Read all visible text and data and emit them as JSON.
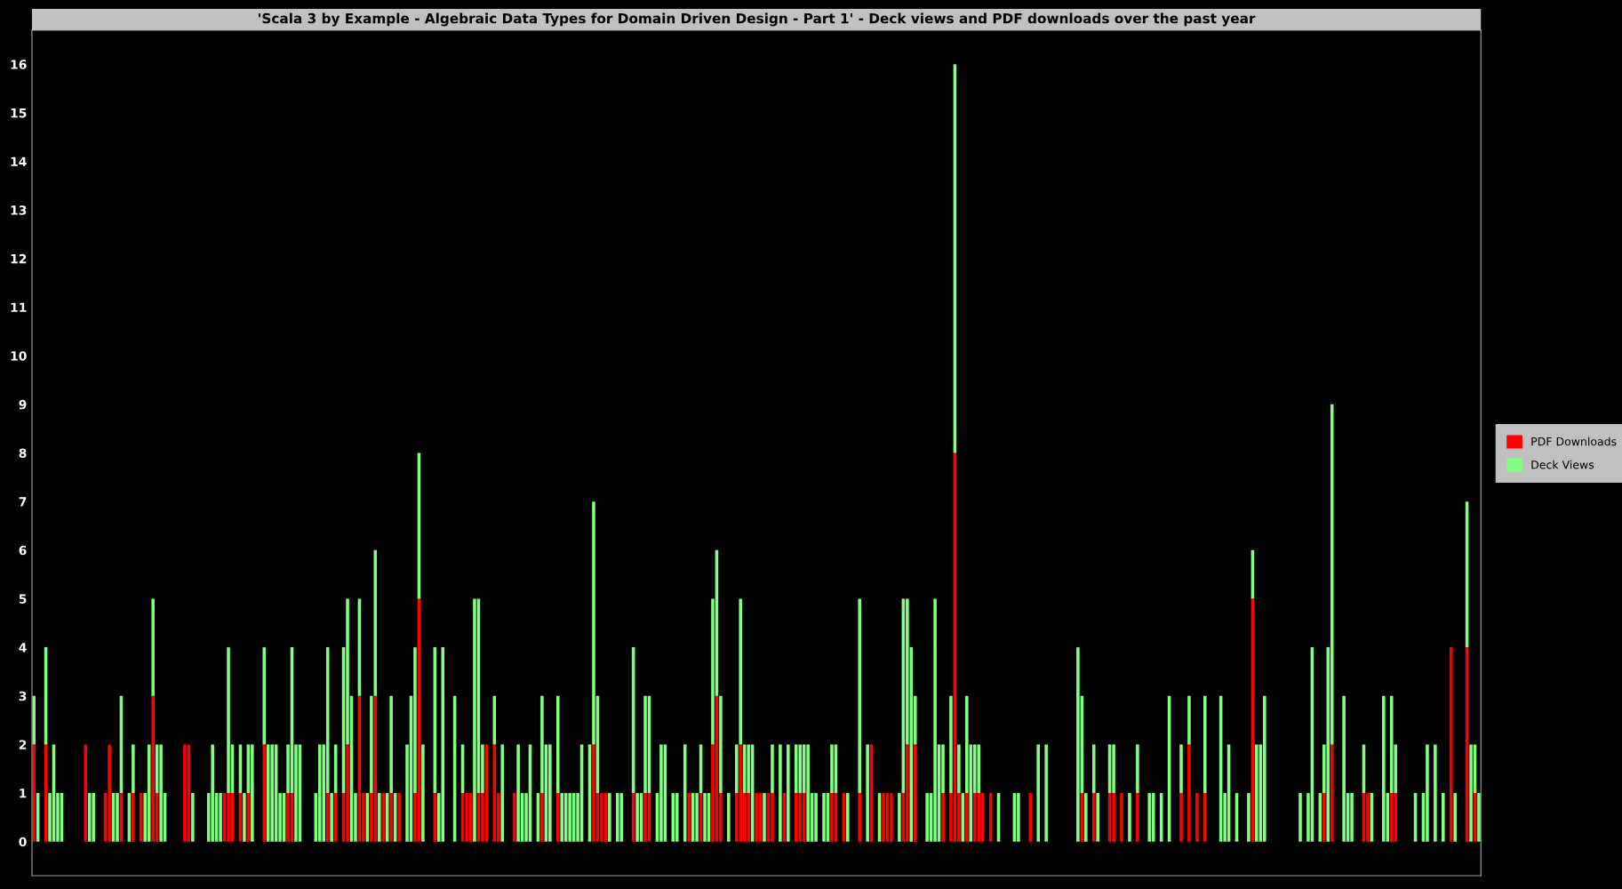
{
  "chart_data": {
    "type": "bar",
    "stacked": true,
    "title": "'Scala 3 by Example - Algebraic Data Types for Domain Driven Design - Part 1' - Deck views and PDF downloads over the past year",
    "categories": [
      null,
      null,
      null,
      null,
      null,
      null,
      null,
      null,
      null,
      null,
      null,
      null,
      null,
      null,
      null,
      null,
      null,
      null,
      null,
      null,
      null,
      null,
      null,
      null,
      null,
      null,
      null,
      null,
      null,
      null,
      null,
      null,
      null,
      null,
      null,
      null,
      null,
      null,
      null,
      null,
      null,
      null,
      null,
      null,
      null,
      null,
      null,
      null,
      null,
      null,
      null,
      null,
      null,
      null,
      null,
      null,
      null,
      null,
      null,
      null,
      null,
      null,
      null,
      null,
      null,
      null,
      null,
      null,
      null,
      null,
      null,
      null,
      null,
      null,
      null,
      null,
      null,
      null,
      null,
      null,
      null,
      null,
      null,
      null,
      null,
      null,
      null,
      null,
      null,
      null,
      null,
      null,
      null,
      null,
      null,
      null,
      null,
      null,
      null,
      null,
      null,
      null,
      null,
      null,
      null,
      null,
      null,
      null,
      null,
      null,
      null,
      null,
      null,
      null,
      null,
      null,
      null,
      null,
      null,
      null,
      null,
      null,
      null,
      null,
      null,
      null,
      null,
      null,
      null,
      null,
      null,
      null,
      null,
      null,
      null,
      null,
      null,
      null,
      null,
      null,
      null,
      null,
      null,
      null,
      null,
      null,
      null,
      null,
      null,
      null,
      null,
      null,
      null,
      null,
      null,
      null,
      null,
      null,
      null,
      null,
      null,
      null,
      null,
      null,
      null,
      null,
      null,
      null,
      null,
      null,
      null,
      null,
      null,
      null,
      null,
      null,
      null,
      null,
      null,
      null,
      null,
      null,
      null,
      null,
      null,
      null,
      null,
      null,
      null,
      null,
      null,
      null,
      null,
      null,
      null,
      null,
      null,
      null,
      null,
      null,
      null,
      null,
      null,
      null,
      null,
      null,
      null,
      null,
      null,
      null,
      null,
      null,
      null,
      null,
      null,
      null,
      null,
      null,
      null,
      null,
      null,
      null,
      null,
      null,
      null,
      null,
      null,
      null,
      null,
      null,
      null,
      null,
      null,
      null,
      null,
      null,
      null,
      null,
      null,
      null,
      null,
      null,
      null,
      null,
      null,
      null,
      null,
      null,
      null,
      null,
      null,
      null,
      null,
      null,
      null,
      null,
      null,
      null,
      null,
      null,
      null,
      null,
      null,
      null,
      null,
      null,
      null,
      null,
      null,
      null,
      null,
      null,
      null,
      null,
      null,
      null,
      null,
      null,
      null,
      null,
      null,
      null,
      null,
      null,
      null,
      null,
      null,
      null,
      null,
      null,
      null,
      null,
      null,
      null,
      null,
      null,
      null,
      null,
      null,
      null,
      null,
      null,
      null,
      null,
      null,
      null,
      null,
      null,
      null,
      null,
      null,
      null,
      null,
      null,
      null,
      null,
      null,
      null,
      null,
      null,
      null,
      null,
      null,
      null,
      null,
      null,
      null,
      null,
      null,
      null,
      null,
      null,
      null,
      null,
      null,
      null,
      null,
      null,
      null,
      null,
      null,
      null,
      null,
      null,
      null,
      null,
      null,
      null,
      null,
      null,
      null,
      null,
      null,
      null,
      null,
      null,
      null,
      null,
      null,
      null,
      null,
      null,
      null,
      null,
      null
    ],
    "series": [
      {
        "name": "PDF Downloads",
        "color": "#ff0000",
        "values": [
          2,
          0,
          0,
          2,
          0,
          0,
          0,
          0,
          0,
          0,
          0,
          0,
          0,
          2,
          0,
          0,
          0,
          0,
          1,
          2,
          0,
          0,
          1,
          0,
          0,
          1,
          0,
          1,
          0,
          0,
          3,
          1,
          0,
          0,
          0,
          0,
          0,
          0,
          2,
          2,
          0,
          0,
          0,
          0,
          0,
          0,
          0,
          0,
          1,
          1,
          1,
          0,
          1,
          0,
          1,
          0,
          0,
          0,
          2,
          0,
          0,
          0,
          0,
          0,
          1,
          1,
          0,
          0,
          0,
          0,
          0,
          0,
          0,
          0,
          1,
          0,
          1,
          0,
          1,
          2,
          0,
          0,
          3,
          1,
          0,
          1,
          3,
          0,
          1,
          0,
          1,
          0,
          1,
          0,
          0,
          0,
          1,
          5,
          0,
          0,
          0,
          1,
          0,
          0,
          0,
          0,
          0,
          0,
          1,
          1,
          1,
          0,
          1,
          1,
          2,
          0,
          2,
          1,
          0,
          0,
          0,
          1,
          0,
          0,
          0,
          0,
          0,
          0,
          1,
          0,
          0,
          0,
          1,
          0,
          0,
          0,
          0,
          0,
          0,
          0,
          0,
          2,
          1,
          1,
          1,
          0,
          0,
          0,
          0,
          0,
          0,
          1,
          0,
          0,
          1,
          1,
          0,
          0,
          0,
          0,
          0,
          0,
          0,
          0,
          0,
          1,
          0,
          0,
          1,
          0,
          0,
          2,
          3,
          1,
          0,
          0,
          0,
          1,
          2,
          1,
          1,
          0,
          1,
          1,
          0,
          1,
          1,
          0,
          0,
          1,
          0,
          0,
          1,
          1,
          1,
          0,
          0,
          0,
          0,
          0,
          0,
          1,
          1,
          0,
          1,
          0,
          0,
          0,
          1,
          0,
          0,
          2,
          0,
          0,
          1,
          1,
          1,
          0,
          0,
          1,
          2,
          0,
          2,
          0,
          0,
          0,
          0,
          0,
          0,
          1,
          0,
          1,
          8,
          1,
          0,
          1,
          0,
          1,
          1,
          1,
          0,
          1,
          0,
          0,
          0,
          0,
          0,
          0,
          0,
          0,
          0,
          1,
          0,
          0,
          0,
          0,
          0,
          0,
          0,
          0,
          0,
          0,
          0,
          0,
          1,
          0,
          0,
          1,
          0,
          0,
          0,
          1,
          1,
          0,
          1,
          0,
          0,
          0,
          1,
          0,
          0,
          0,
          0,
          0,
          0,
          0,
          0,
          0,
          0,
          1,
          0,
          2,
          0,
          1,
          0,
          1,
          0,
          0,
          0,
          0,
          0,
          0,
          0,
          0,
          0,
          0,
          0,
          5,
          0,
          0,
          0,
          0,
          0,
          0,
          0,
          0,
          0,
          0,
          0,
          0,
          0,
          0,
          0,
          0,
          0,
          1,
          0,
          2,
          0,
          0,
          0,
          0,
          0,
          0,
          0,
          1,
          1,
          0,
          0,
          0,
          0,
          0,
          1,
          1,
          0,
          0,
          0,
          0,
          0,
          0,
          0,
          0,
          0,
          0,
          0,
          0,
          0,
          4,
          0,
          0,
          0,
          4,
          0,
          1,
          0
        ]
      },
      {
        "name": "Deck Views",
        "color": "#80ff80",
        "values": [
          1,
          1,
          0,
          2,
          1,
          2,
          1,
          1,
          0,
          0,
          0,
          0,
          0,
          0,
          1,
          1,
          0,
          0,
          0,
          0,
          1,
          1,
          2,
          0,
          1,
          1,
          0,
          0,
          1,
          2,
          2,
          1,
          2,
          1,
          0,
          0,
          0,
          0,
          0,
          0,
          1,
          0,
          0,
          0,
          1,
          2,
          1,
          1,
          0,
          3,
          1,
          0,
          1,
          1,
          1,
          2,
          0,
          0,
          2,
          2,
          2,
          2,
          1,
          1,
          1,
          3,
          2,
          2,
          0,
          0,
          0,
          1,
          2,
          2,
          3,
          1,
          1,
          0,
          3,
          3,
          3,
          1,
          2,
          0,
          1,
          2,
          3,
          1,
          0,
          1,
          2,
          1,
          0,
          0,
          2,
          3,
          3,
          3,
          2,
          0,
          0,
          3,
          1,
          4,
          0,
          0,
          3,
          0,
          1,
          0,
          0,
          5,
          4,
          1,
          0,
          0,
          1,
          0,
          2,
          0,
          0,
          0,
          2,
          1,
          1,
          2,
          0,
          1,
          2,
          2,
          2,
          0,
          2,
          1,
          1,
          1,
          1,
          1,
          2,
          0,
          2,
          5,
          2,
          0,
          0,
          1,
          0,
          1,
          1,
          0,
          0,
          3,
          1,
          1,
          2,
          2,
          0,
          1,
          2,
          2,
          0,
          1,
          1,
          0,
          2,
          0,
          1,
          1,
          1,
          1,
          1,
          3,
          3,
          2,
          0,
          1,
          0,
          1,
          3,
          1,
          1,
          2,
          0,
          0,
          1,
          0,
          1,
          0,
          2,
          0,
          2,
          0,
          1,
          1,
          1,
          2,
          1,
          1,
          0,
          1,
          1,
          1,
          1,
          0,
          0,
          1,
          0,
          0,
          4,
          0,
          2,
          0,
          0,
          1,
          0,
          0,
          0,
          0,
          1,
          4,
          3,
          4,
          1,
          0,
          0,
          1,
          1,
          5,
          2,
          1,
          0,
          2,
          8,
          1,
          1,
          2,
          2,
          1,
          1,
          0,
          0,
          0,
          0,
          1,
          0,
          0,
          0,
          1,
          1,
          0,
          0,
          0,
          0,
          2,
          0,
          2,
          0,
          0,
          0,
          0,
          0,
          0,
          0,
          4,
          2,
          1,
          0,
          1,
          1,
          0,
          0,
          1,
          1,
          0,
          0,
          0,
          1,
          0,
          1,
          0,
          0,
          1,
          1,
          0,
          1,
          0,
          3,
          0,
          0,
          1,
          0,
          1,
          0,
          0,
          0,
          2,
          0,
          0,
          0,
          3,
          1,
          2,
          0,
          1,
          0,
          0,
          1,
          1,
          2,
          2,
          3,
          0,
          0,
          0,
          0,
          0,
          0,
          0,
          0,
          1,
          0,
          1,
          4,
          0,
          1,
          1,
          4,
          7,
          0,
          0,
          3,
          1,
          1,
          0,
          0,
          1,
          0,
          1,
          0,
          0,
          3,
          1,
          2,
          1,
          0,
          0,
          0,
          0,
          1,
          0,
          1,
          2,
          0,
          2,
          0,
          1,
          0,
          0,
          1,
          0,
          0,
          3,
          2,
          1,
          1
        ]
      }
    ],
    "ylim": [
      -0.7,
      16.7
    ],
    "yticks": [
      0,
      1,
      2,
      3,
      4,
      5,
      6,
      7,
      8,
      9,
      10,
      11,
      12,
      13,
      14,
      15,
      16
    ],
    "tick_labels": "y",
    "grid": false,
    "legend": "right"
  }
}
